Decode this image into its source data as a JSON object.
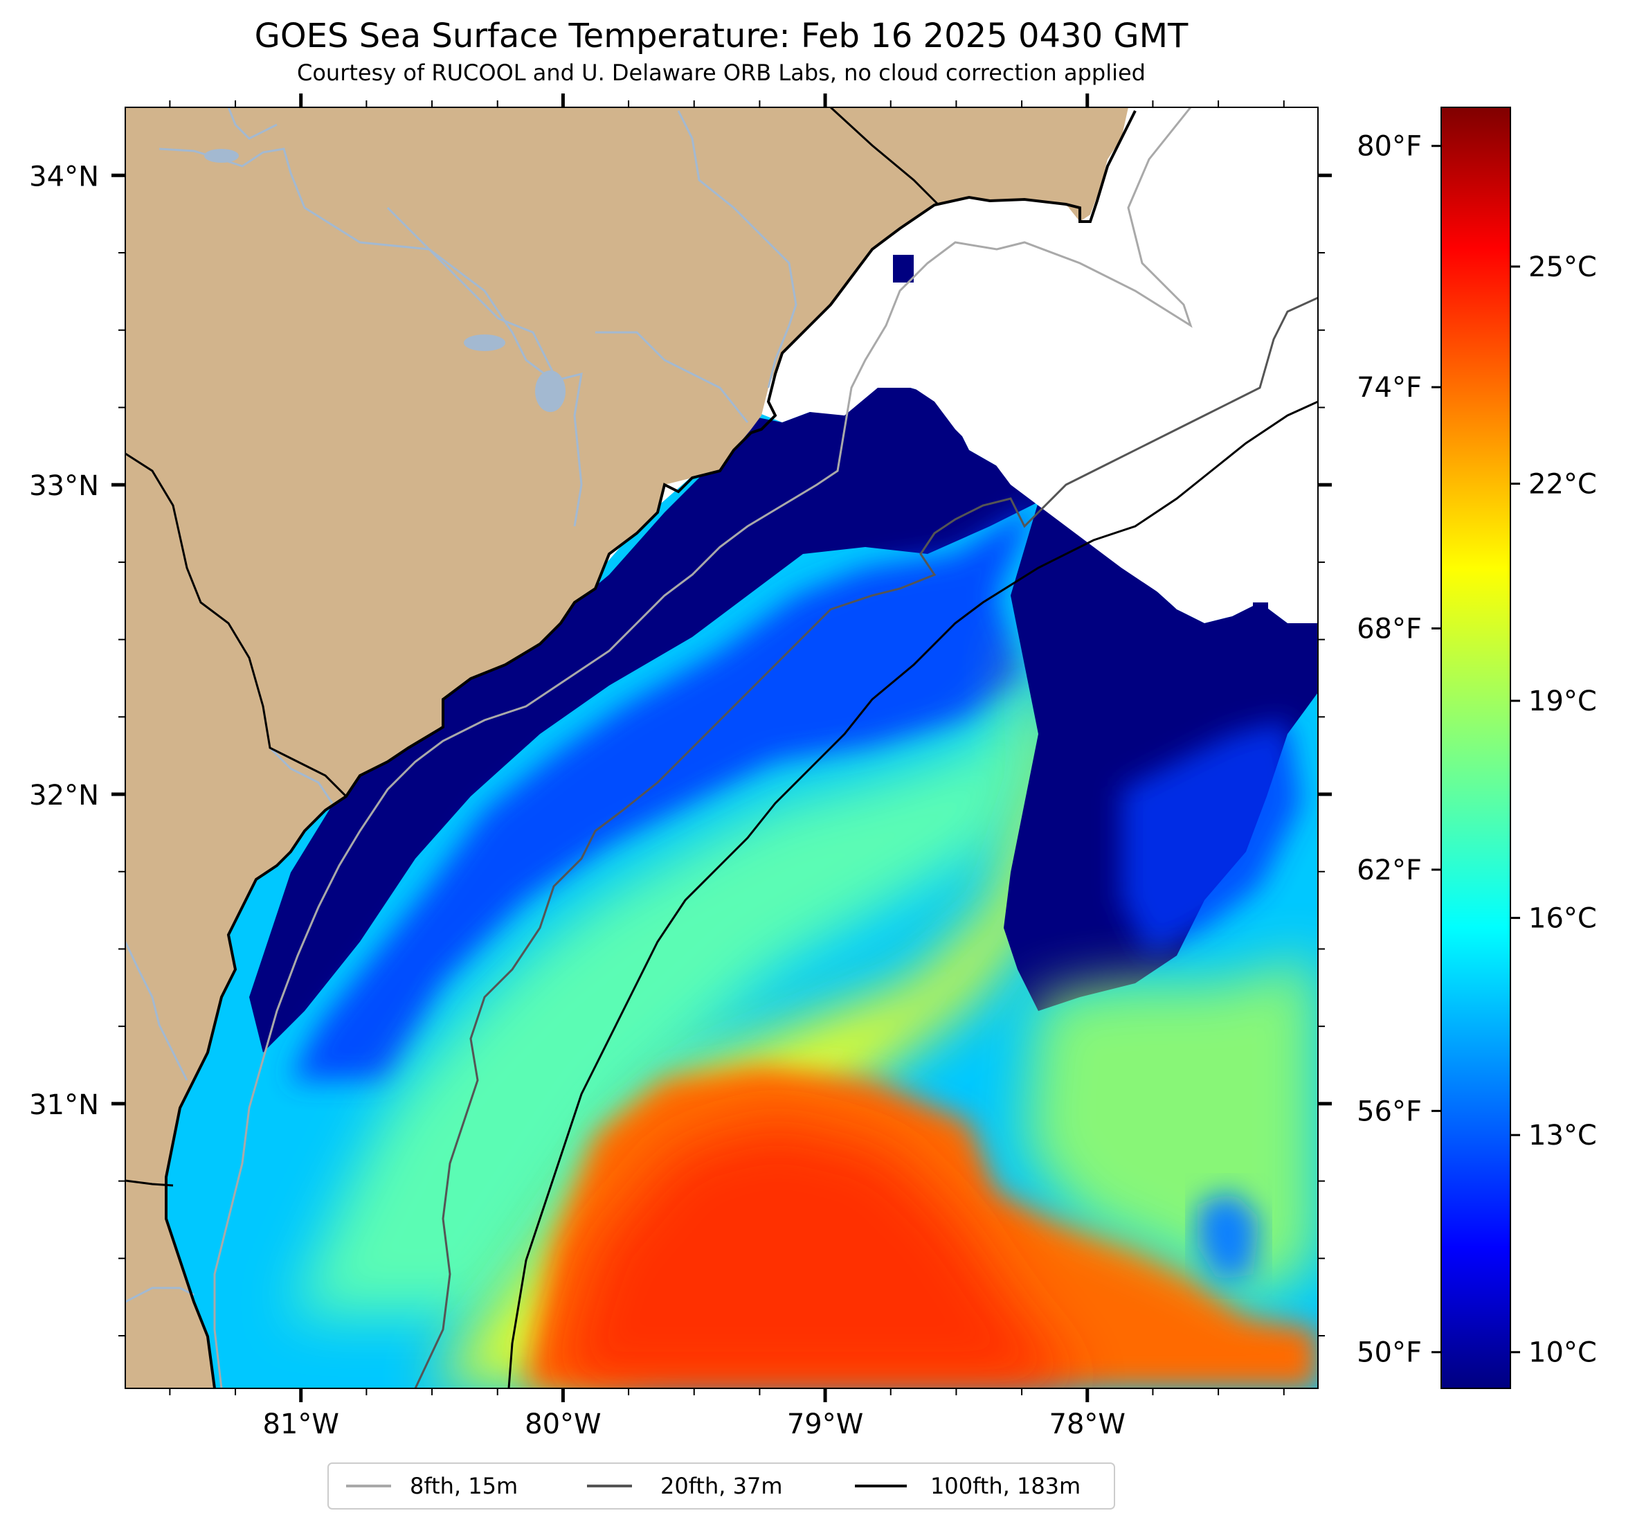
{
  "title": "GOES Sea Surface Temperature: Feb 16 2025 0430 GMT",
  "subtitle": "Courtesy of RUCOOL and U. Delaware ORB Labs, no cloud correction applied",
  "map": {
    "lon_range": [
      -81.67,
      -77.12
    ],
    "lat_range": [
      30.08,
      34.22
    ],
    "lon_ticks": [
      {
        "value": -81,
        "label": "81°W"
      },
      {
        "value": -80,
        "label": "80°W"
      },
      {
        "value": -79,
        "label": "79°W"
      },
      {
        "value": -78,
        "label": "78°W"
      }
    ],
    "lat_ticks": [
      {
        "value": 34,
        "label": "34°N"
      },
      {
        "value": 33,
        "label": "33°N"
      },
      {
        "value": 32,
        "label": "32°N"
      },
      {
        "value": 31,
        "label": "31°N"
      }
    ],
    "colors": {
      "land": "#d2b48c",
      "river": "#a3b9d1",
      "coast": "#000000",
      "no_data": "#ffffff",
      "cold_edge": "#000080"
    }
  },
  "colorbar": {
    "colormap": "jet",
    "celsius_range": [
      9.5,
      27.2
    ],
    "fahrenheit_ticks": [
      {
        "value": 80,
        "label": "80°F"
      },
      {
        "value": 74,
        "label": "74°F"
      },
      {
        "value": 68,
        "label": "68°F"
      },
      {
        "value": 62,
        "label": "62°F"
      },
      {
        "value": 56,
        "label": "56°F"
      },
      {
        "value": 50,
        "label": "50°F"
      }
    ],
    "celsius_ticks": [
      {
        "value": 25,
        "label": "25°C"
      },
      {
        "value": 22,
        "label": "22°C"
      },
      {
        "value": 19,
        "label": "19°C"
      },
      {
        "value": 16,
        "label": "16°C"
      },
      {
        "value": 13,
        "label": "13°C"
      },
      {
        "value": 10,
        "label": "10°C"
      }
    ]
  },
  "legend": [
    {
      "label": "8fth, 15m",
      "color": "#a9a9a9"
    },
    {
      "label": "20fth, 37m",
      "color": "#555555"
    },
    {
      "label": "100fth, 183m",
      "color": "#000000"
    }
  ]
}
